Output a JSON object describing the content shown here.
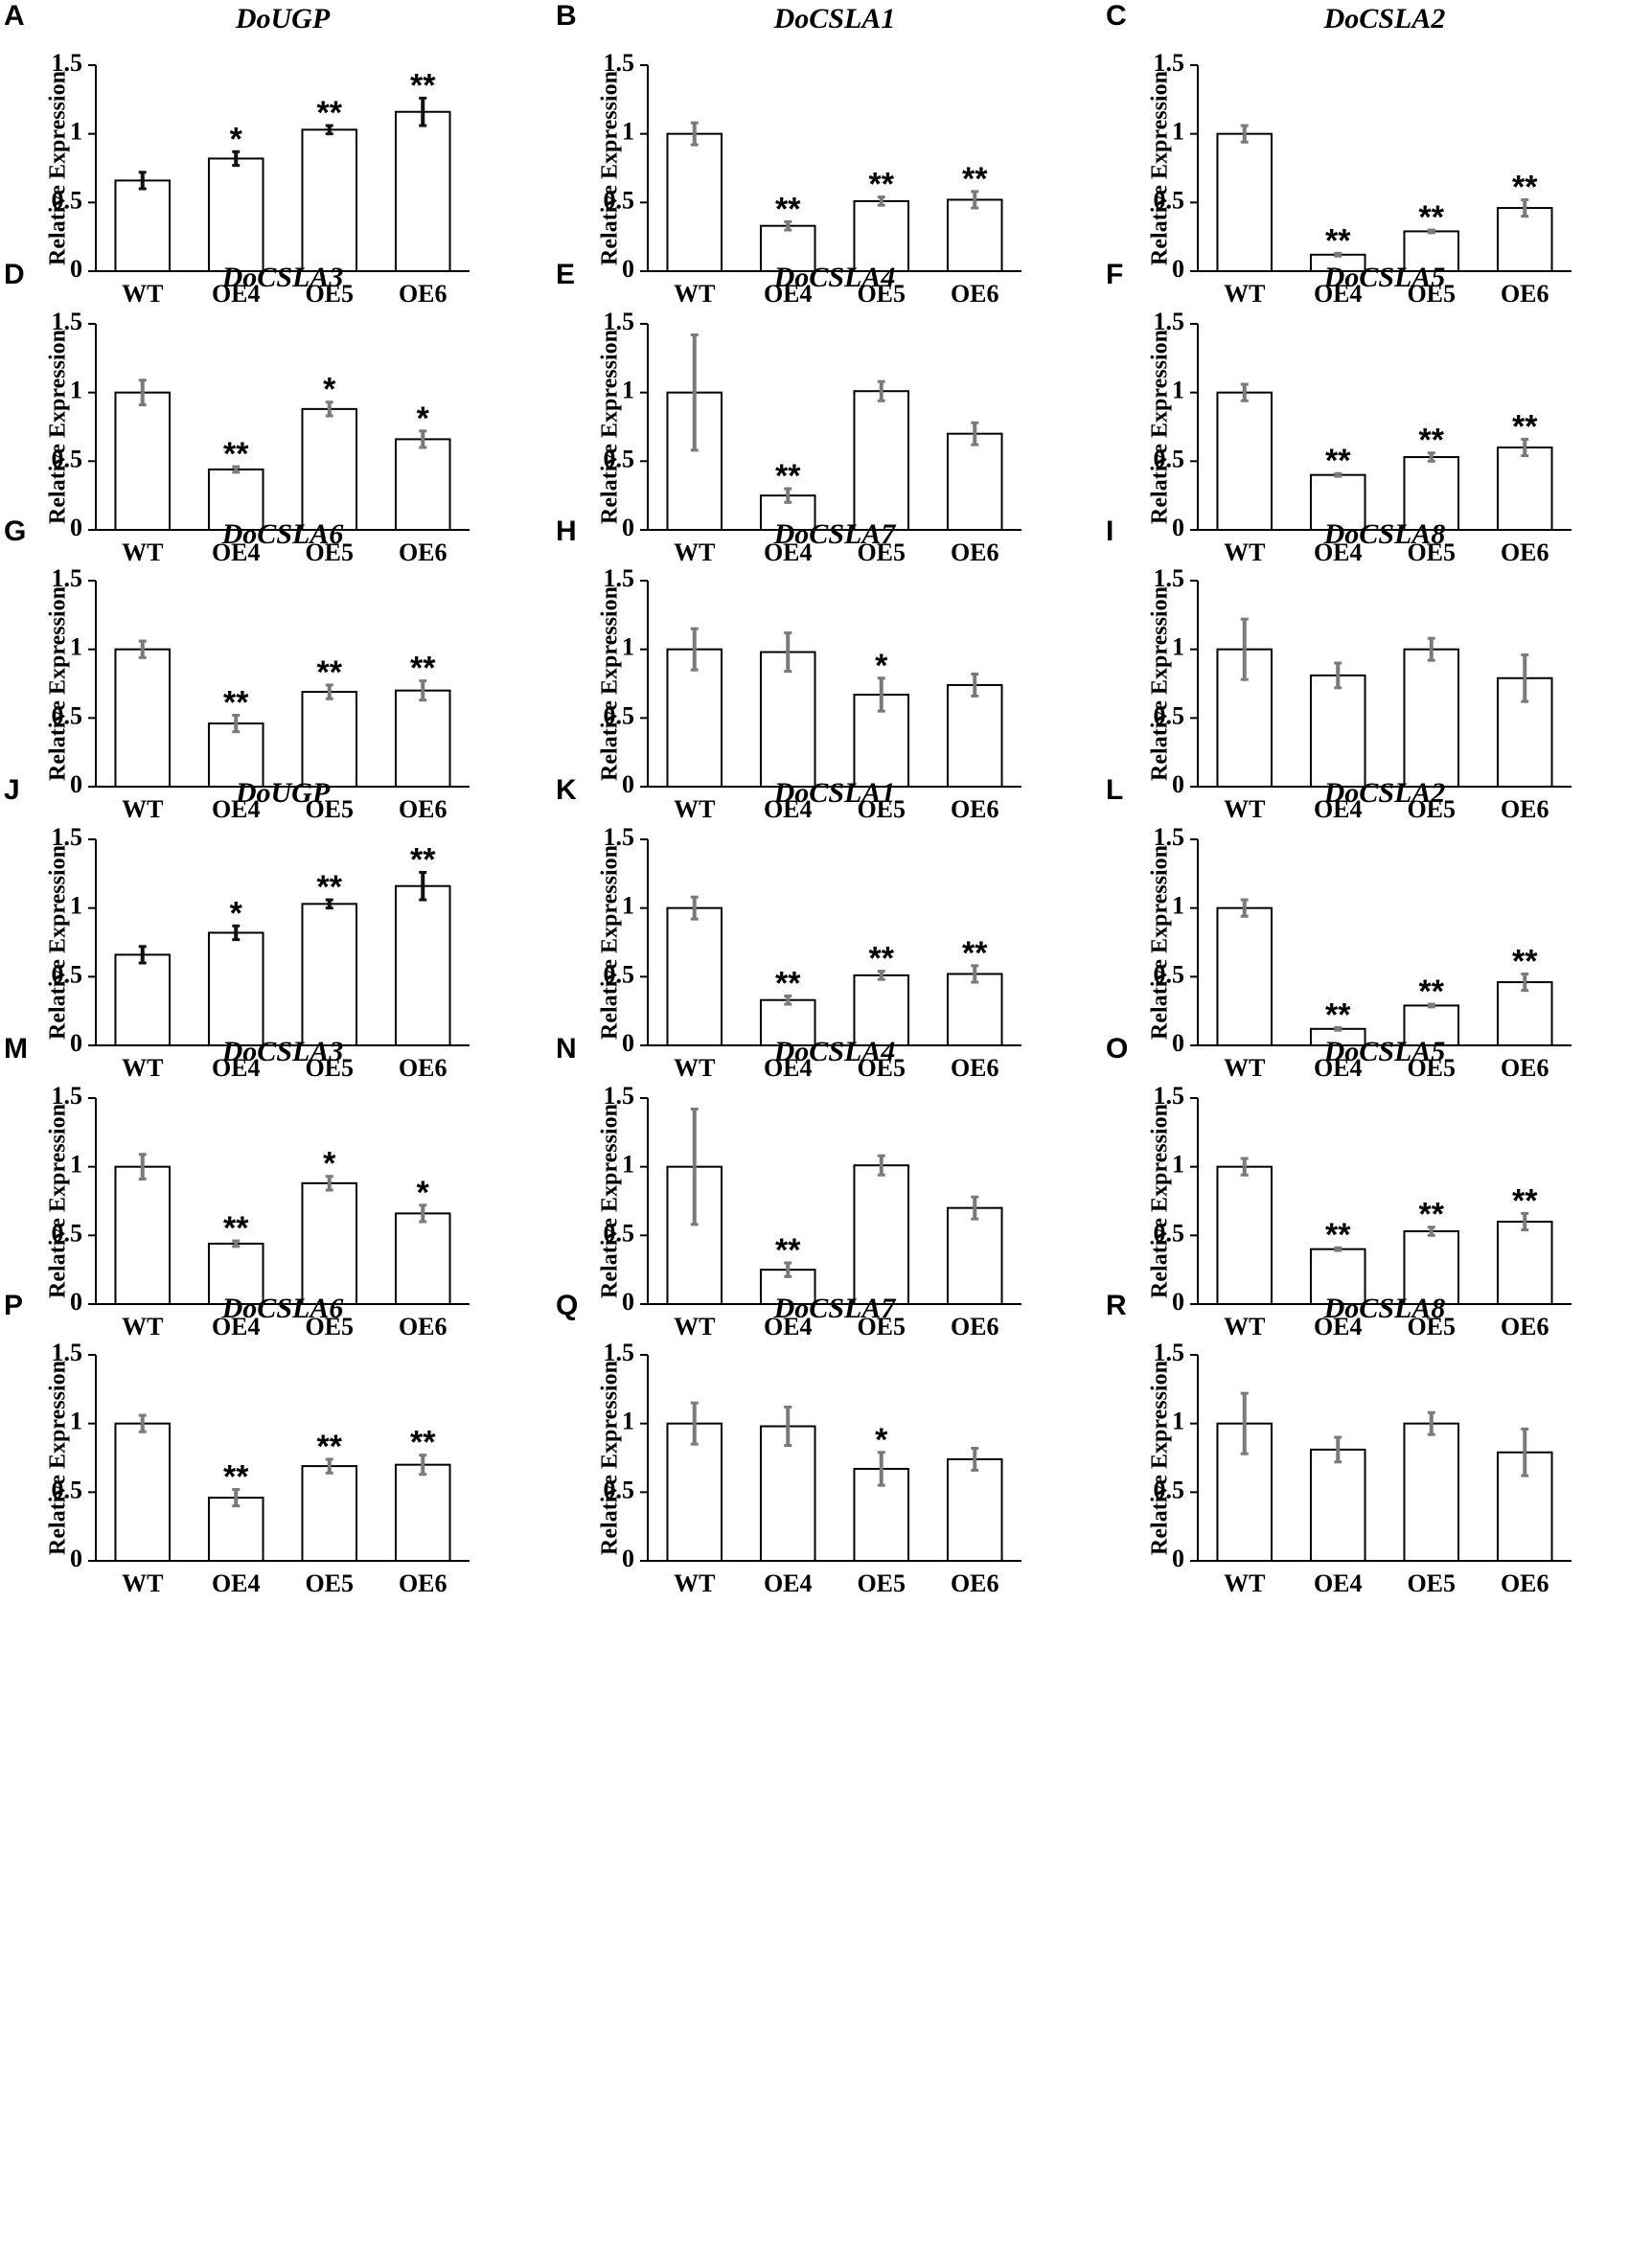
{
  "style": {
    "bar_fill": "#ffffff",
    "bar_stroke": "#000000",
    "axis_color": "#000000",
    "error_dark": "#111111",
    "error_gray": "#7a7a7a"
  },
  "shared": {
    "ylabel": "Relative Expression",
    "yticks": [
      "0",
      "0.5",
      "1",
      "1.5"
    ],
    "categories": [
      "WT",
      "OE4",
      "OE5",
      "OE6"
    ]
  },
  "chart_data": [
    {
      "letter": "A",
      "title": "DoUGP",
      "type": "bar",
      "categories": [
        "WT",
        "OE4",
        "OE5",
        "OE6"
      ],
      "values": [
        0.66,
        0.82,
        1.03,
        1.16
      ],
      "errors": [
        0.06,
        0.05,
        0.03,
        0.1
      ],
      "stars": [
        "",
        "*",
        "**",
        "**"
      ],
      "error_color": "dark",
      "ylabel": "Relative Expression",
      "ylim": [
        0,
        1.5
      ]
    },
    {
      "letter": "B",
      "title": "DoCSLA1",
      "type": "bar",
      "categories": [
        "WT",
        "OE4",
        "OE5",
        "OE6"
      ],
      "values": [
        1.0,
        0.33,
        0.51,
        0.52
      ],
      "errors": [
        0.08,
        0.03,
        0.03,
        0.06
      ],
      "stars": [
        "",
        "**",
        "**",
        "**"
      ],
      "error_color": "gray",
      "ylabel": "Relative Expression",
      "ylim": [
        0,
        1.5
      ]
    },
    {
      "letter": "C",
      "title": "DoCSLA2",
      "type": "bar",
      "categories": [
        "WT",
        "OE4",
        "OE5",
        "OE6"
      ],
      "values": [
        1.0,
        0.12,
        0.29,
        0.46
      ],
      "errors": [
        0.06,
        0.01,
        0.01,
        0.06
      ],
      "stars": [
        "",
        "**",
        "**",
        "**"
      ],
      "error_color": "gray",
      "ylabel": "Relative Expression",
      "ylim": [
        0,
        1.5
      ]
    },
    {
      "letter": "D",
      "title": "DoCSLA3",
      "type": "bar",
      "categories": [
        "WT",
        "OE4",
        "OE5",
        "OE6"
      ],
      "values": [
        1.0,
        0.44,
        0.88,
        0.66
      ],
      "errors": [
        0.09,
        0.02,
        0.05,
        0.06
      ],
      "stars": [
        "",
        "**",
        "*",
        "*"
      ],
      "error_color": "gray",
      "ylabel": "Relative Expression",
      "ylim": [
        0,
        1.5
      ]
    },
    {
      "letter": "E",
      "title": "DoCSLA4",
      "type": "bar",
      "categories": [
        "WT",
        "OE4",
        "OE5",
        "OE6"
      ],
      "values": [
        1.0,
        0.25,
        1.01,
        0.7
      ],
      "errors": [
        0.42,
        0.05,
        0.07,
        0.08
      ],
      "stars": [
        "",
        "**",
        "",
        ""
      ],
      "error_color": "gray",
      "ylabel": "Relative Expression",
      "ylim": [
        0,
        1.5
      ]
    },
    {
      "letter": "F",
      "title": "DoCSLA5",
      "type": "bar",
      "categories": [
        "WT",
        "OE4",
        "OE5",
        "OE6"
      ],
      "values": [
        1.0,
        0.4,
        0.53,
        0.6
      ],
      "errors": [
        0.06,
        0.01,
        0.03,
        0.06
      ],
      "stars": [
        "",
        "**",
        "**",
        "**"
      ],
      "error_color": "gray",
      "ylabel": "Relative Expression",
      "ylim": [
        0,
        1.5
      ]
    },
    {
      "letter": "G",
      "title": "DoCSLA6",
      "type": "bar",
      "categories": [
        "WT",
        "OE4",
        "OE5",
        "OE6"
      ],
      "values": [
        1.0,
        0.46,
        0.69,
        0.7
      ],
      "errors": [
        0.06,
        0.06,
        0.05,
        0.07
      ],
      "stars": [
        "",
        "**",
        "**",
        "**"
      ],
      "error_color": "gray",
      "ylabel": "Relative Expression",
      "ylim": [
        0,
        1.5
      ]
    },
    {
      "letter": "H",
      "title": "DoCSLA7",
      "type": "bar",
      "categories": [
        "WT",
        "OE4",
        "OE5",
        "OE6"
      ],
      "values": [
        1.0,
        0.98,
        0.67,
        0.74
      ],
      "errors": [
        0.15,
        0.14,
        0.12,
        0.08
      ],
      "stars": [
        "",
        "",
        "*",
        ""
      ],
      "error_color": "gray",
      "ylabel": "Relative Expression",
      "ylim": [
        0,
        1.5
      ]
    },
    {
      "letter": "I",
      "title": "DoCSLA8",
      "type": "bar",
      "categories": [
        "WT",
        "OE4",
        "OE5",
        "OE6"
      ],
      "values": [
        1.0,
        0.81,
        1.0,
        0.79
      ],
      "errors": [
        0.22,
        0.09,
        0.08,
        0.17
      ],
      "stars": [
        "",
        "",
        "",
        ""
      ],
      "error_color": "gray",
      "ylabel": "Relative Expression",
      "ylim": [
        0,
        1.5
      ]
    },
    {
      "letter": "J",
      "title": "DoUGP",
      "type": "bar",
      "categories": [
        "WT",
        "OE4",
        "OE5",
        "OE6"
      ],
      "values": [
        0.66,
        0.82,
        1.03,
        1.16
      ],
      "errors": [
        0.06,
        0.05,
        0.03,
        0.1
      ],
      "stars": [
        "",
        "*",
        "**",
        "**"
      ],
      "error_color": "dark",
      "ylabel": "Relative Expression",
      "ylim": [
        0,
        1.5
      ]
    },
    {
      "letter": "K",
      "title": "DoCSLA1",
      "type": "bar",
      "categories": [
        "WT",
        "OE4",
        "OE5",
        "OE6"
      ],
      "values": [
        1.0,
        0.33,
        0.51,
        0.52
      ],
      "errors": [
        0.08,
        0.03,
        0.03,
        0.06
      ],
      "stars": [
        "",
        "**",
        "**",
        "**"
      ],
      "error_color": "gray",
      "ylabel": "Relative Expression",
      "ylim": [
        0,
        1.5
      ]
    },
    {
      "letter": "L",
      "title": "DoCSLA2",
      "type": "bar",
      "categories": [
        "WT",
        "OE4",
        "OE5",
        "OE6"
      ],
      "values": [
        1.0,
        0.12,
        0.29,
        0.46
      ],
      "errors": [
        0.06,
        0.01,
        0.01,
        0.06
      ],
      "stars": [
        "",
        "**",
        "**",
        "**"
      ],
      "error_color": "gray",
      "ylabel": "Relative Expression",
      "ylim": [
        0,
        1.5
      ]
    },
    {
      "letter": "M",
      "title": "DoCSLA3",
      "type": "bar",
      "categories": [
        "WT",
        "OE4",
        "OE5",
        "OE6"
      ],
      "values": [
        1.0,
        0.44,
        0.88,
        0.66
      ],
      "errors": [
        0.09,
        0.02,
        0.05,
        0.06
      ],
      "stars": [
        "",
        "**",
        "*",
        "*"
      ],
      "error_color": "gray",
      "ylabel": "Relative Expression",
      "ylim": [
        0,
        1.5
      ]
    },
    {
      "letter": "N",
      "title": "DoCSLA4",
      "type": "bar",
      "categories": [
        "WT",
        "OE4",
        "OE5",
        "OE6"
      ],
      "values": [
        1.0,
        0.25,
        1.01,
        0.7
      ],
      "errors": [
        0.42,
        0.05,
        0.07,
        0.08
      ],
      "stars": [
        "",
        "**",
        "",
        ""
      ],
      "error_color": "gray",
      "ylabel": "Relative Expression",
      "ylim": [
        0,
        1.5
      ]
    },
    {
      "letter": "O",
      "title": "DoCSLA5",
      "type": "bar",
      "categories": [
        "WT",
        "OE4",
        "OE5",
        "OE6"
      ],
      "values": [
        1.0,
        0.4,
        0.53,
        0.6
      ],
      "errors": [
        0.06,
        0.01,
        0.03,
        0.06
      ],
      "stars": [
        "",
        "**",
        "**",
        "**"
      ],
      "error_color": "gray",
      "ylabel": "Relative Expression",
      "ylim": [
        0,
        1.5
      ]
    },
    {
      "letter": "P",
      "title": "DoCSLA6",
      "type": "bar",
      "categories": [
        "WT",
        "OE4",
        "OE5",
        "OE6"
      ],
      "values": [
        1.0,
        0.46,
        0.69,
        0.7
      ],
      "errors": [
        0.06,
        0.06,
        0.05,
        0.07
      ],
      "stars": [
        "",
        "**",
        "**",
        "**"
      ],
      "error_color": "gray",
      "ylabel": "Relative Expression",
      "ylim": [
        0,
        1.5
      ]
    },
    {
      "letter": "Q",
      "title": "DoCSLA7",
      "type": "bar",
      "categories": [
        "WT",
        "OE4",
        "OE5",
        "OE6"
      ],
      "values": [
        1.0,
        0.98,
        0.67,
        0.74
      ],
      "errors": [
        0.15,
        0.14,
        0.12,
        0.08
      ],
      "stars": [
        "",
        "",
        "*",
        ""
      ],
      "error_color": "gray",
      "ylabel": "Relative Expression",
      "ylim": [
        0,
        1.5
      ]
    },
    {
      "letter": "R",
      "title": "DoCSLA8",
      "type": "bar",
      "categories": [
        "WT",
        "OE4",
        "OE5",
        "OE6"
      ],
      "values": [
        1.0,
        0.81,
        1.0,
        0.79
      ],
      "errors": [
        0.22,
        0.09,
        0.08,
        0.17
      ],
      "stars": [
        "",
        "",
        "",
        ""
      ],
      "error_color": "gray",
      "ylabel": "Relative Expression",
      "ylim": [
        0,
        1.5
      ]
    }
  ]
}
